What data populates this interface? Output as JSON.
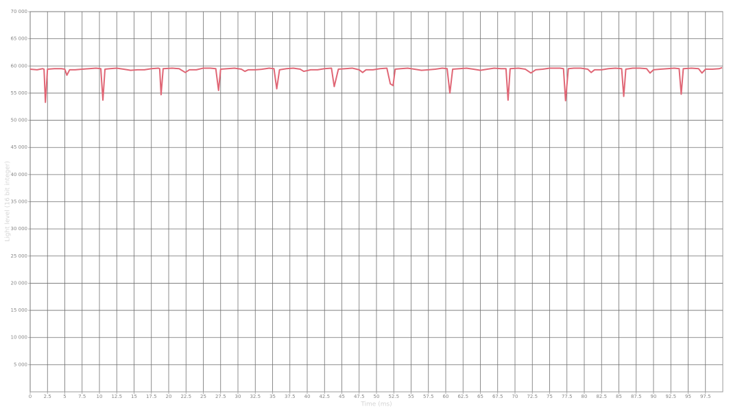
{
  "chart_data": {
    "type": "line",
    "x_label": "Time (ms)",
    "y_label": "Light level (16 bit integer)",
    "xlim": [
      0,
      100
    ],
    "ylim": [
      0,
      70000
    ],
    "xticks": [
      0,
      2.5,
      5,
      7.5,
      10,
      12.5,
      15,
      17.5,
      20,
      22.5,
      25,
      27.5,
      30,
      32.5,
      35,
      37.5,
      40,
      42.5,
      45,
      47.5,
      50,
      52.5,
      55,
      57.5,
      60,
      62.5,
      65,
      67.5,
      70,
      72.5,
      75,
      77.5,
      80,
      82.5,
      85,
      87.5,
      90,
      92.5,
      95,
      97.5
    ],
    "yticks": [
      {
        "value": 5000,
        "label": "5 000"
      },
      {
        "value": 10000,
        "label": "10 000"
      },
      {
        "value": 15000,
        "label": "15 000"
      },
      {
        "value": 20000,
        "label": "20 000"
      },
      {
        "value": 25000,
        "label": "25 000"
      },
      {
        "value": 30000,
        "label": "30 000"
      },
      {
        "value": 35000,
        "label": "35 000"
      },
      {
        "value": 40000,
        "label": "40 000"
      },
      {
        "value": 45000,
        "label": "45 000"
      },
      {
        "value": 50000,
        "label": "50 000"
      },
      {
        "value": 55000,
        "label": "55 000"
      },
      {
        "value": 60000,
        "label": "60 000"
      },
      {
        "value": 65000,
        "label": "65 000"
      },
      {
        "value": 70000,
        "label": "70 000"
      }
    ],
    "grid": true,
    "series": [
      {
        "color": "#e06675",
        "x": [
          0,
          1,
          1.8,
          2.0,
          2.2,
          2.5,
          3.5,
          4.5,
          5.0,
          5.3,
          5.7,
          6.5,
          7.5,
          8.5,
          9.5,
          10.2,
          10.5,
          10.8,
          11.5,
          12.5,
          13.5,
          14.5,
          15.5,
          16.5,
          17.5,
          18.5,
          18.7,
          18.9,
          19.2,
          20.5,
          21.5,
          22.4,
          23.0,
          24.0,
          25.0,
          26.0,
          26.8,
          27.2,
          27.5,
          28.5,
          29.5,
          30.5,
          31.0,
          31.5,
          32.5,
          33.5,
          34.5,
          35.2,
          35.6,
          36.0,
          37.0,
          38.0,
          39.0,
          39.5,
          40.5,
          41.5,
          42.5,
          43.5,
          43.9,
          44.5,
          45.5,
          46.5,
          47.5,
          48.0,
          48.5,
          49.5,
          50.5,
          51.5,
          52.0,
          52.4,
          52.7,
          53.5,
          54.5,
          55.5,
          56.5,
          57.5,
          58.5,
          59.5,
          60.2,
          60.6,
          61.0,
          62.0,
          63.0,
          64.0,
          65.0,
          66.0,
          67.0,
          68.0,
          68.7,
          69.0,
          69.3,
          70.5,
          71.5,
          72.3,
          73.0,
          74.0,
          75.0,
          76.5,
          77.0,
          77.3,
          77.7,
          78.5,
          79.5,
          80.5,
          81.0,
          81.5,
          82.5,
          83.5,
          84.5,
          85.4,
          85.7,
          86.0,
          87.0,
          88.0,
          89.0,
          89.5,
          90.0,
          91.0,
          92.0,
          93.0,
          93.7,
          94.0,
          94.3,
          95.5,
          96.5,
          97.0,
          97.5,
          98.5,
          99.5,
          99.9
        ],
        "values": [
          59400,
          59300,
          59500,
          59400,
          53300,
          59400,
          59500,
          59500,
          59400,
          58300,
          59300,
          59300,
          59400,
          59500,
          59600,
          59500,
          53700,
          59400,
          59500,
          59600,
          59400,
          59200,
          59300,
          59300,
          59500,
          59600,
          59500,
          54700,
          59500,
          59600,
          59500,
          58800,
          59300,
          59300,
          59600,
          59600,
          59500,
          55500,
          59400,
          59500,
          59600,
          59400,
          59000,
          59300,
          59300,
          59400,
          59600,
          59500,
          55800,
          59300,
          59500,
          59600,
          59400,
          59000,
          59300,
          59300,
          59500,
          59600,
          56200,
          59400,
          59500,
          59600,
          59300,
          58800,
          59300,
          59300,
          59500,
          59600,
          56700,
          56400,
          59400,
          59500,
          59600,
          59400,
          59200,
          59300,
          59400,
          59600,
          59500,
          55000,
          59400,
          59500,
          59600,
          59400,
          59200,
          59400,
          59600,
          59500,
          59500,
          53700,
          59500,
          59600,
          59400,
          58700,
          59300,
          59400,
          59600,
          59600,
          59500,
          53600,
          59500,
          59600,
          59600,
          59400,
          58800,
          59300,
          59300,
          59500,
          59600,
          59500,
          54400,
          59400,
          59600,
          59600,
          59500,
          58700,
          59300,
          59400,
          59500,
          59600,
          59500,
          54800,
          59500,
          59600,
          59500,
          58700,
          59400,
          59400,
          59500,
          59700
        ]
      }
    ]
  }
}
